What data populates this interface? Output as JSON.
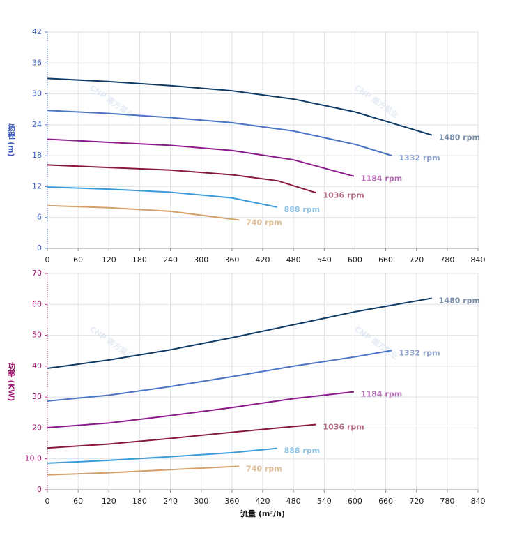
{
  "chart_data": [
    {
      "type": "line",
      "ylabel": "扬程 (m)",
      "ylabel_color": "#3b5bc4",
      "axis_color": "#5b7bd5",
      "xlim": [
        0,
        840
      ],
      "xticks": [
        0,
        60,
        120,
        180,
        240,
        300,
        360,
        420,
        480,
        540,
        600,
        660,
        720,
        780,
        840
      ],
      "ylim": [
        0,
        42
      ],
      "yticks": [
        0,
        6,
        12,
        18,
        24,
        30,
        36,
        42
      ],
      "grid": true,
      "watermark": "CNP 南方泵业",
      "series": [
        {
          "name": "1480 rpm",
          "color": "#0d3b66",
          "label_color": "#7a8fa8",
          "x": [
            0,
            120,
            240,
            360,
            480,
            600,
            700,
            750
          ],
          "values": [
            33,
            32.4,
            31.6,
            30.6,
            29,
            26.5,
            23.5,
            22
          ]
        },
        {
          "name": "1332 rpm",
          "color": "#4a74c4",
          "label_color": "#8fa4cf",
          "x": [
            0,
            120,
            240,
            360,
            480,
            600,
            672
          ],
          "values": [
            26.8,
            26.2,
            25.4,
            24.4,
            22.8,
            20.2,
            18
          ]
        },
        {
          "name": "1184 rpm",
          "color": "#8b1a8b",
          "label_color": "#b36bb3",
          "x": [
            0,
            120,
            240,
            360,
            480,
            598
          ],
          "values": [
            21.2,
            20.6,
            20,
            19,
            17.2,
            14
          ]
        },
        {
          "name": "1036 rpm",
          "color": "#8b1a3a",
          "label_color": "#b06a7e",
          "x": [
            0,
            120,
            240,
            360,
            450,
            524
          ],
          "values": [
            16.2,
            15.7,
            15.2,
            14.3,
            13.1,
            10.8
          ]
        },
        {
          "name": "888 rpm",
          "color": "#3a9bd9",
          "label_color": "#8fc3e6",
          "x": [
            0,
            120,
            240,
            360,
            448
          ],
          "values": [
            11.9,
            11.5,
            10.9,
            9.8,
            8
          ]
        },
        {
          "name": "740 rpm",
          "color": "#d4a06a",
          "label_color": "#e0bf98",
          "x": [
            0,
            120,
            240,
            374
          ],
          "values": [
            8.3,
            7.9,
            7.2,
            5.5
          ]
        }
      ]
    },
    {
      "type": "line",
      "ylabel": "功率 (KW)",
      "ylabel_color": "#a0156e",
      "axis_color": "#c0307e",
      "xlabel": "流量 (m³/h)",
      "xlim": [
        0,
        840
      ],
      "xticks": [
        0,
        60,
        120,
        180,
        240,
        300,
        360,
        420,
        480,
        540,
        600,
        660,
        720,
        780,
        840
      ],
      "ylim": [
        0,
        70
      ],
      "yticks": [
        0,
        {
          "value": 10,
          "label": "10.0"
        },
        20,
        30,
        40,
        50,
        60,
        70
      ],
      "grid": true,
      "watermark": "CNP 南方泵业",
      "series": [
        {
          "name": "1480 rpm",
          "color": "#0d3b66",
          "label_color": "#7a8fa8",
          "x": [
            0,
            120,
            240,
            360,
            480,
            600,
            750
          ],
          "values": [
            39.3,
            42,
            45.3,
            49.2,
            53.4,
            57.6,
            62
          ]
        },
        {
          "name": "1332 rpm",
          "color": "#4a74c4",
          "label_color": "#8fa4cf",
          "x": [
            0,
            120,
            240,
            360,
            480,
            600,
            672
          ],
          "values": [
            28.7,
            30.6,
            33.4,
            36.6,
            40,
            43,
            45.1
          ]
        },
        {
          "name": "1184 rpm",
          "color": "#8b1a8b",
          "label_color": "#b36bb3",
          "x": [
            0,
            120,
            240,
            360,
            480,
            598
          ],
          "values": [
            20.1,
            21.6,
            24,
            26.6,
            29.5,
            31.7
          ]
        },
        {
          "name": "1036 rpm",
          "color": "#8b1a3a",
          "label_color": "#b06a7e",
          "x": [
            0,
            120,
            240,
            360,
            450,
            524
          ],
          "values": [
            13.5,
            14.8,
            16.6,
            18.6,
            20,
            21.1
          ]
        },
        {
          "name": "888 rpm",
          "color": "#3a9bd9",
          "label_color": "#8fc3e6",
          "x": [
            0,
            120,
            240,
            360,
            448
          ],
          "values": [
            8.6,
            9.5,
            10.7,
            12,
            13.4
          ]
        },
        {
          "name": "740 rpm",
          "color": "#d4a06a",
          "label_color": "#e0bf98",
          "x": [
            0,
            120,
            240,
            374
          ],
          "values": [
            4.8,
            5.5,
            6.5,
            7.6
          ]
        }
      ]
    }
  ]
}
